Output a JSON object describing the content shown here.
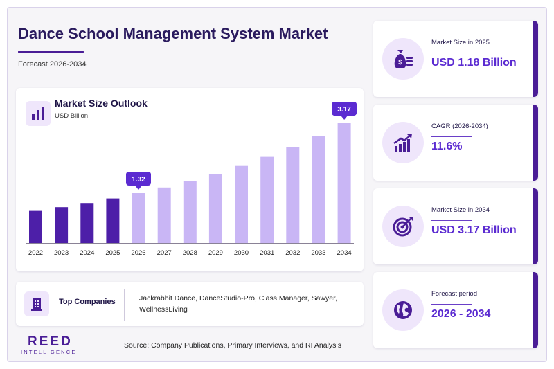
{
  "header": {
    "title": "Dance School Management System Market",
    "subtitle": "Forecast 2026-2034"
  },
  "chart_panel": {
    "title": "Market Size Outlook",
    "unit": "USD Billion"
  },
  "chart_data": {
    "type": "bar",
    "categories": [
      "2022",
      "2023",
      "2024",
      "2025",
      "2026",
      "2027",
      "2028",
      "2029",
      "2030",
      "2031",
      "2032",
      "2033",
      "2034"
    ],
    "values": [
      0.85,
      0.95,
      1.06,
      1.18,
      1.32,
      1.47,
      1.64,
      1.83,
      2.04,
      2.28,
      2.54,
      2.84,
      3.17
    ],
    "data_labels": [
      {
        "category": "2026",
        "text": "1.32"
      },
      {
        "category": "2034",
        "text": "3.17"
      }
    ],
    "historical_color": "#4d1fa8",
    "forecast_color": "#c9b6f5",
    "label_color": "#5b2bd1",
    "ylim": [
      0,
      3.5
    ],
    "grid": false
  },
  "companies": {
    "label": "Top Companies",
    "list": "Jackrabbit Dance, DanceStudio-Pro, Class Manager, Sawyer, WellnessLiving"
  },
  "stats": [
    {
      "label": "Market Size in 2025",
      "value": "USD 1.18 Billion",
      "icon": "money-bag-icon"
    },
    {
      "label": "CAGR (2026-2034)",
      "value": "11.6%",
      "icon": "growth-chart-icon"
    },
    {
      "label": "Market Size in 2034",
      "value": "USD 3.17 Billion",
      "icon": "target-icon"
    },
    {
      "label": "Forecast period",
      "value": "2026 - 2034",
      "icon": "globe-icon"
    }
  ],
  "footer": {
    "logo": "REED",
    "logo_sub": "INTELLIGENCE",
    "source": "Source: Company Publications, Primary Interviews, and RI Analysis"
  },
  "colors": {
    "accent": "#4a1d96",
    "value_text": "#5b2bd1",
    "icon_bg": "#efe6fb"
  }
}
